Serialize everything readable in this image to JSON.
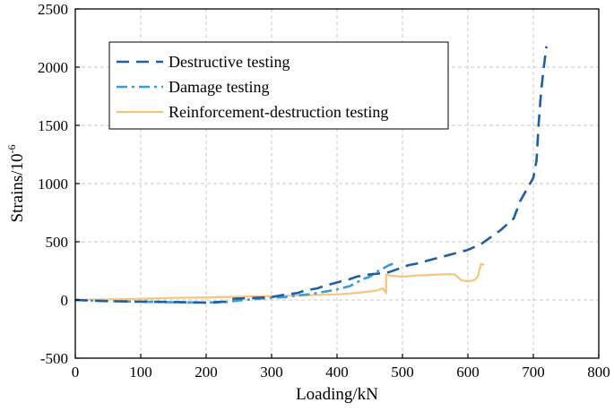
{
  "chart_data": {
    "type": "line",
    "title": "",
    "xlabel": "Loading/kN",
    "ylabel": "Strains/10",
    "ylabel_superscript": "-6",
    "xlim": [
      0,
      800
    ],
    "ylim": [
      -500,
      2500
    ],
    "xticks": [
      0,
      100,
      200,
      300,
      400,
      500,
      600,
      700,
      800
    ],
    "yticks": [
      -500,
      0,
      500,
      1000,
      1500,
      2000,
      2500
    ],
    "grid": true,
    "legend_position": "top-left",
    "series": [
      {
        "name": "Destructive testing",
        "color": "#1f5fa0",
        "style": "dashed",
        "points": [
          [
            0,
            0
          ],
          [
            50,
            -10
          ],
          [
            100,
            -15
          ],
          [
            150,
            -18
          ],
          [
            200,
            -22
          ],
          [
            230,
            -15
          ],
          [
            240,
            10
          ],
          [
            260,
            15
          ],
          [
            300,
            25
          ],
          [
            320,
            45
          ],
          [
            340,
            60
          ],
          [
            350,
            80
          ],
          [
            370,
            100
          ],
          [
            380,
            120
          ],
          [
            400,
            150
          ],
          [
            420,
            180
          ],
          [
            430,
            200
          ],
          [
            450,
            220
          ],
          [
            470,
            230
          ],
          [
            480,
            240
          ],
          [
            490,
            260
          ],
          [
            500,
            280
          ],
          [
            510,
            300
          ],
          [
            520,
            310
          ],
          [
            540,
            340
          ],
          [
            560,
            370
          ],
          [
            580,
            400
          ],
          [
            600,
            430
          ],
          [
            620,
            480
          ],
          [
            630,
            520
          ],
          [
            640,
            560
          ],
          [
            650,
            600
          ],
          [
            660,
            650
          ],
          [
            670,
            700
          ],
          [
            680,
            850
          ],
          [
            690,
            950
          ],
          [
            700,
            1050
          ],
          [
            705,
            1200
          ],
          [
            708,
            1500
          ],
          [
            712,
            1800
          ],
          [
            716,
            2000
          ],
          [
            720,
            2180
          ]
        ]
      },
      {
        "name": "Damage testing",
        "color": "#3d9bd3",
        "style": "dashdot",
        "points": [
          [
            0,
            0
          ],
          [
            50,
            -10
          ],
          [
            100,
            -15
          ],
          [
            150,
            -20
          ],
          [
            200,
            -22
          ],
          [
            230,
            -18
          ],
          [
            250,
            -5
          ],
          [
            280,
            10
          ],
          [
            300,
            20
          ],
          [
            320,
            25
          ],
          [
            340,
            40
          ],
          [
            360,
            50
          ],
          [
            380,
            70
          ],
          [
            400,
            90
          ],
          [
            420,
            120
          ],
          [
            430,
            150
          ],
          [
            440,
            180
          ],
          [
            450,
            200
          ],
          [
            460,
            240
          ],
          [
            470,
            270
          ],
          [
            480,
            300
          ],
          [
            490,
            320
          ]
        ]
      },
      {
        "name": "Reinforcement-destruction testing",
        "color": "#f7c47f",
        "style": "solid",
        "points": [
          [
            0,
            0
          ],
          [
            50,
            5
          ],
          [
            100,
            10
          ],
          [
            150,
            18
          ],
          [
            200,
            22
          ],
          [
            250,
            28
          ],
          [
            300,
            33
          ],
          [
            350,
            40
          ],
          [
            400,
            48
          ],
          [
            430,
            60
          ],
          [
            460,
            80
          ],
          [
            470,
            100
          ],
          [
            475,
            60
          ],
          [
            475,
            220
          ],
          [
            480,
            210
          ],
          [
            500,
            200
          ],
          [
            520,
            210
          ],
          [
            540,
            215
          ],
          [
            560,
            220
          ],
          [
            580,
            220
          ],
          [
            590,
            170
          ],
          [
            600,
            160
          ],
          [
            610,
            170
          ],
          [
            615,
            200
          ],
          [
            620,
            310
          ],
          [
            625,
            300
          ]
        ]
      }
    ]
  }
}
